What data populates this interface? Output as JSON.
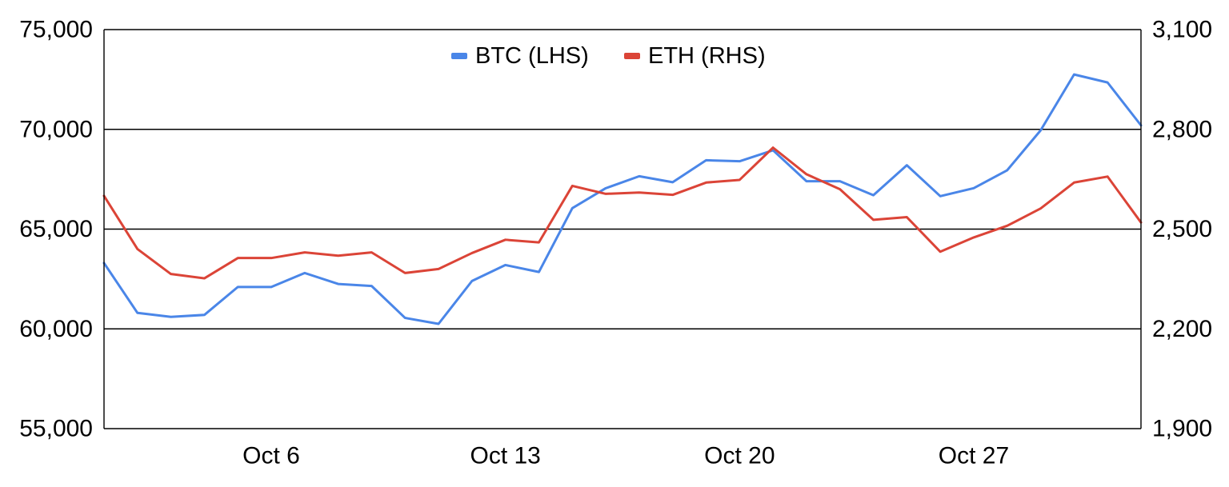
{
  "chart_data": {
    "type": "line",
    "title": "",
    "xlabel": "",
    "ylabel": "",
    "legend_position": "top-center",
    "grid": "horizontal",
    "x": [
      "Oct 1",
      "Oct 2",
      "Oct 3",
      "Oct 4",
      "Oct 5",
      "Oct 6",
      "Oct 7",
      "Oct 8",
      "Oct 9",
      "Oct 10",
      "Oct 11",
      "Oct 12",
      "Oct 13",
      "Oct 14",
      "Oct 15",
      "Oct 16",
      "Oct 17",
      "Oct 18",
      "Oct 19",
      "Oct 20",
      "Oct 21",
      "Oct 22",
      "Oct 23",
      "Oct 24",
      "Oct 25",
      "Oct 26",
      "Oct 27",
      "Oct 28",
      "Oct 29",
      "Oct 30",
      "Oct 31",
      "Nov 1"
    ],
    "x_tick_labels": [
      "Oct 6",
      "Oct 13",
      "Oct 20",
      "Oct 27"
    ],
    "y_left": {
      "min": 55000,
      "max": 75000,
      "ticks": [
        55000,
        60000,
        65000,
        70000,
        75000
      ],
      "tick_labels": [
        "55,000",
        "60,000",
        "65,000",
        "70,000",
        "75,000"
      ]
    },
    "y_right": {
      "min": 1900,
      "max": 3100,
      "ticks": [
        1900,
        2200,
        2500,
        2800,
        3100
      ],
      "tick_labels": [
        "1,900",
        "2,200",
        "2,500",
        "2,800",
        "3,100"
      ]
    },
    "series": [
      {
        "name": "BTC (LHS)",
        "axis": "left",
        "color": "#4a86e8",
        "values": [
          63300,
          60800,
          60600,
          60700,
          62100,
          62100,
          62800,
          62250,
          62150,
          60550,
          60250,
          62400,
          63200,
          62850,
          66050,
          67050,
          67650,
          67350,
          68450,
          68400,
          68950,
          67400,
          67400,
          66700,
          68200,
          66650,
          67050,
          67950,
          69950,
          72750,
          72350,
          70200
        ]
      },
      {
        "name": "ETH (RHS)",
        "axis": "right",
        "color": "#db4437",
        "values": [
          2600,
          2440,
          2365,
          2352,
          2413,
          2413,
          2430,
          2420,
          2430,
          2368,
          2380,
          2428,
          2468,
          2460,
          2630,
          2606,
          2610,
          2603,
          2640,
          2648,
          2745,
          2665,
          2620,
          2528,
          2536,
          2432,
          2475,
          2510,
          2562,
          2640,
          2658,
          2520
        ]
      }
    ]
  }
}
